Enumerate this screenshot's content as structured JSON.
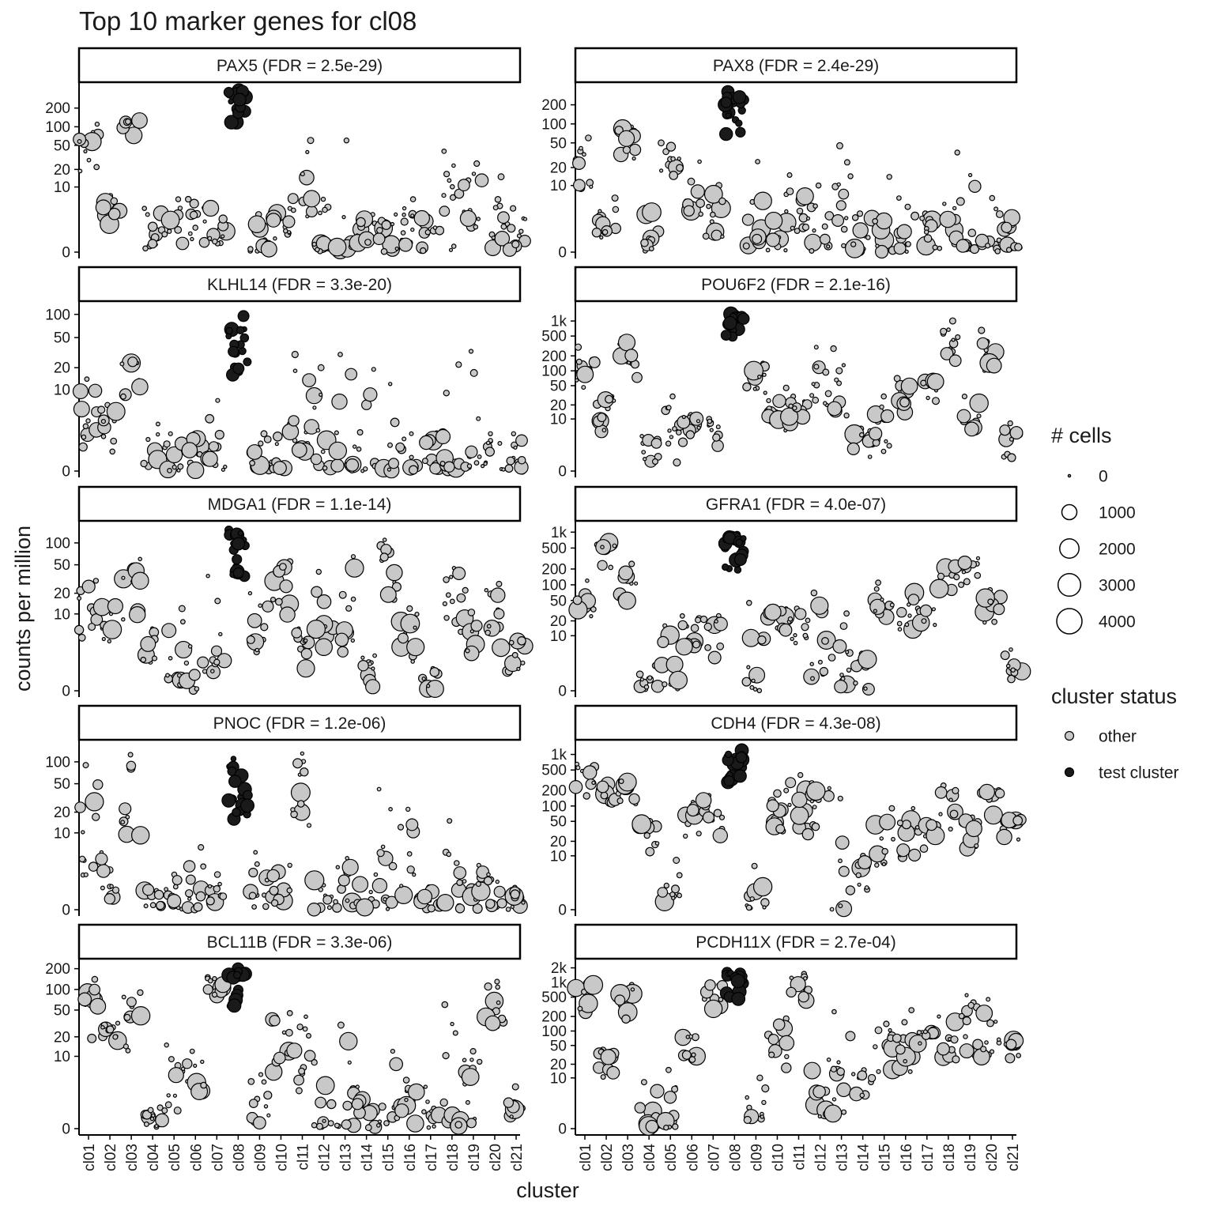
{
  "chart_data": {
    "type": "scatter",
    "title": "Top 10 marker genes for cl08",
    "xlabel": "cluster",
    "ylabel": "counts per million",
    "categories": [
      "cl01",
      "cl02",
      "cl03",
      "cl04",
      "cl05",
      "cl06",
      "cl07",
      "cl08",
      "cl09",
      "cl10",
      "cl11",
      "cl12",
      "cl13",
      "cl14",
      "cl15",
      "cl16",
      "cl17",
      "cl18",
      "cl19",
      "cl20",
      "cl21"
    ],
    "test_cluster": "cl08",
    "y_scale": "log10(1 + cpm)",
    "colors": {
      "other": "#c8c8c8",
      "test": "#1a1a1a",
      "stroke": "#000000"
    },
    "legend": {
      "size_title": "# cells",
      "size_entries": [
        {
          "label": "0",
          "value": 0
        },
        {
          "label": "1000",
          "value": 1000
        },
        {
          "label": "2000",
          "value": 2000
        },
        {
          "label": "3000",
          "value": 3000
        },
        {
          "label": "4000",
          "value": 4000
        }
      ],
      "status_title": "cluster status",
      "status_entries": [
        {
          "label": "other",
          "status": "other"
        },
        {
          "label": "test cluster",
          "status": "test"
        }
      ]
    },
    "panels": [
      {
        "gene": "PAX5",
        "label": "PAX5 (FDR = 2.5e-29)",
        "ymax": 400,
        "ticks": [
          {
            "v": 0,
            "label": "0"
          },
          {
            "v": 10,
            "label": "10"
          },
          {
            "v": 20,
            "label": "20"
          },
          {
            "v": 50,
            "label": "50"
          },
          {
            "v": 100,
            "label": "100"
          },
          {
            "v": 200,
            "label": "200"
          }
        ],
        "medians": [
          40,
          3,
          110,
          0.5,
          1.5,
          1.5,
          1.2,
          330,
          0.3,
          1.5,
          8,
          0.5,
          0.3,
          1,
          0.4,
          1.5,
          0.8,
          0.3,
          5,
          1,
          0.7
        ],
        "highs": [
          110,
          7,
          150,
          4,
          6,
          6,
          5,
          380,
          3,
          4,
          60,
          6,
          60,
          3,
          3,
          6,
          3,
          40,
          25,
          15,
          4
        ]
      },
      {
        "gene": "PAX8",
        "label": "PAX8 (FDR = 2.4e-29)",
        "ymax": 350,
        "ticks": [
          {
            "v": 0,
            "label": "0"
          },
          {
            "v": 10,
            "label": "10"
          },
          {
            "v": 20,
            "label": "20"
          },
          {
            "v": 50,
            "label": "50"
          },
          {
            "v": 100,
            "label": "100"
          },
          {
            "v": 200,
            "label": "200"
          }
        ],
        "medians": [
          20,
          2,
          60,
          0.6,
          25,
          9,
          1.5,
          180,
          1,
          0.7,
          3,
          0.5,
          0.3,
          1,
          0.4,
          0.5,
          1,
          0.8,
          1,
          0.8,
          0.6
        ],
        "highs": [
          60,
          6,
          90,
          4,
          50,
          25,
          10,
          320,
          25,
          7,
          15,
          10,
          45,
          3,
          14,
          6,
          3,
          35,
          15,
          6,
          3
        ]
      },
      {
        "gene": "KLHL14",
        "label": "KLHL14 (FDR = 3.3e-20)",
        "ymax": 120,
        "ticks": [
          {
            "v": 0,
            "label": "0"
          },
          {
            "v": 10,
            "label": "10"
          },
          {
            "v": 20,
            "label": "20"
          },
          {
            "v": 50,
            "label": "50"
          },
          {
            "v": 100,
            "label": "100"
          }
        ],
        "medians": [
          3,
          3,
          20,
          0.4,
          0.4,
          0.6,
          0.6,
          45,
          0.3,
          0.5,
          3,
          0.3,
          0.3,
          0.3,
          0.3,
          0.3,
          0.6,
          0.3,
          0.6,
          0.4,
          0.4
        ],
        "highs": [
          14,
          6,
          26,
          3,
          2,
          2,
          7,
          95,
          2,
          3,
          30,
          20,
          30,
          19,
          12,
          2,
          2,
          22,
          33,
          2,
          2
        ]
      },
      {
        "gene": "POU6F2",
        "label": "POU6F2 (FDR = 2.1e-16)",
        "ymax": 1800,
        "ticks": [
          {
            "v": 0,
            "label": "0"
          },
          {
            "v": 10,
            "label": "10"
          },
          {
            "v": 20,
            "label": "20"
          },
          {
            "v": 50,
            "label": "50"
          },
          {
            "v": 100,
            "label": "100"
          },
          {
            "v": 200,
            "label": "200"
          },
          {
            "v": 500,
            "label": "500"
          },
          {
            "v": 1000,
            "label": "1k"
          }
        ],
        "medians": [
          120,
          15,
          200,
          1,
          1.5,
          8,
          7,
          1100,
          70,
          12,
          15,
          50,
          30,
          3,
          5,
          35,
          55,
          300,
          15,
          180,
          3
        ],
        "highs": [
          300,
          30,
          450,
          4,
          30,
          12,
          10,
          1500,
          140,
          45,
          30,
          300,
          280,
          6,
          30,
          70,
          65,
          1000,
          30,
          650,
          8
        ]
      },
      {
        "gene": "MDGA1",
        "label": "MDGA1 (FDR = 1.1e-14)",
        "ymax": 160,
        "ticks": [
          {
            "v": 0,
            "label": "0"
          },
          {
            "v": 10,
            "label": "10"
          },
          {
            "v": 20,
            "label": "20"
          },
          {
            "v": 50,
            "label": "50"
          },
          {
            "v": 100,
            "label": "100"
          }
        ],
        "medians": [
          12,
          10,
          22,
          3,
          0.8,
          0.8,
          3,
          95,
          5,
          25,
          3,
          8,
          6,
          1,
          45,
          4,
          0.4,
          15,
          7,
          8,
          3
        ],
        "highs": [
          30,
          14,
          60,
          6,
          12,
          3,
          35,
          150,
          20,
          55,
          6,
          40,
          65,
          2,
          110,
          12,
          1,
          45,
          22,
          27,
          4
        ]
      },
      {
        "gene": "GFRA1",
        "label": "GFRA1 (FDR = 4.0e-07)",
        "ymax": 1200,
        "ticks": [
          {
            "v": 0,
            "label": "0"
          },
          {
            "v": 10,
            "label": "10"
          },
          {
            "v": 20,
            "label": "20"
          },
          {
            "v": 50,
            "label": "50"
          },
          {
            "v": 100,
            "label": "100"
          },
          {
            "v": 200,
            "label": "200"
          },
          {
            "v": 500,
            "label": "500"
          },
          {
            "v": 1000,
            "label": "1k"
          }
        ],
        "medians": [
          60,
          500,
          60,
          0.4,
          0.5,
          15,
          10,
          500,
          0.6,
          25,
          20,
          2,
          1,
          1,
          60,
          35,
          30,
          200,
          250,
          40,
          2
        ],
        "highs": [
          120,
          700,
          250,
          2,
          16,
          25,
          25,
          900,
          45,
          35,
          35,
          70,
          28,
          4,
          110,
          90,
          35,
          250,
          320,
          80,
          5
        ]
      },
      {
        "gene": "PNOC",
        "label": "PNOC (FDR = 1.2e-06)",
        "ymax": 160,
        "ticks": [
          {
            "v": 0,
            "label": "0"
          },
          {
            "v": 10,
            "label": "10"
          },
          {
            "v": 20,
            "label": "20"
          },
          {
            "v": 50,
            "label": "50"
          },
          {
            "v": 100,
            "label": "100"
          }
        ],
        "medians": [
          5,
          2,
          20,
          0.3,
          0.4,
          0.7,
          0.6,
          30,
          0.6,
          0.5,
          30,
          0.3,
          0.3,
          0.3,
          0.6,
          1,
          0.5,
          0.3,
          0.5,
          0.4,
          0.3
        ],
        "highs": [
          90,
          5,
          125,
          1,
          2,
          6,
          2,
          110,
          5,
          3,
          130,
          2,
          4,
          2,
          42,
          22,
          1,
          15,
          3,
          2,
          1
        ]
      },
      {
        "gene": "CDH4",
        "label": "CDH4 (FDR = 4.3e-08)",
        "ymax": 1400,
        "ticks": [
          {
            "v": 0,
            "label": "0"
          },
          {
            "v": 10,
            "label": "10"
          },
          {
            "v": 20,
            "label": "20"
          },
          {
            "v": 50,
            "label": "50"
          },
          {
            "v": 100,
            "label": "100"
          },
          {
            "v": 200,
            "label": "200"
          },
          {
            "v": 500,
            "label": "500"
          },
          {
            "v": 1000,
            "label": "1k"
          }
        ],
        "medians": [
          450,
          200,
          250,
          35,
          2,
          60,
          60,
          750,
          1,
          90,
          80,
          70,
          0.5,
          5,
          15,
          25,
          40,
          100,
          40,
          150,
          50
        ],
        "highs": [
          650,
          280,
          320,
          50,
          8,
          120,
          160,
          1200,
          6,
          200,
          400,
          280,
          140,
          10,
          90,
          90,
          45,
          250,
          60,
          200,
          55
        ]
      },
      {
        "gene": "BCL11B",
        "label": "BCL11B (FDR = 3.3e-06)",
        "ymax": 220,
        "ticks": [
          {
            "v": 0,
            "label": "0"
          },
          {
            "v": 10,
            "label": "10"
          },
          {
            "v": 20,
            "label": "20"
          },
          {
            "v": 50,
            "label": "50"
          },
          {
            "v": 100,
            "label": "100"
          },
          {
            "v": 200,
            "label": "200"
          }
        ],
        "medians": [
          50,
          25,
          35,
          0.3,
          2,
          6,
          140,
          140,
          0.8,
          15,
          8,
          0.3,
          0.3,
          0.5,
          0.5,
          1,
          0.5,
          0.3,
          1,
          55,
          1
        ],
        "highs": [
          140,
          32,
          90,
          1,
          15,
          12,
          150,
          200,
          5,
          45,
          40,
          8,
          30,
          3,
          12,
          4,
          3,
          60,
          12,
          130,
          3
        ]
      },
      {
        "gene": "PCDH11X",
        "label": "PCDH11X (FDR = 2.7e-04)",
        "ymax": 2200,
        "ticks": [
          {
            "v": 0,
            "label": "0"
          },
          {
            "v": 10,
            "label": "10"
          },
          {
            "v": 20,
            "label": "20"
          },
          {
            "v": 50,
            "label": "50"
          },
          {
            "v": 100,
            "label": "100"
          },
          {
            "v": 200,
            "label": "200"
          },
          {
            "v": 500,
            "label": "500"
          },
          {
            "v": 1000,
            "label": "1k"
          },
          {
            "v": 2000,
            "label": "2k"
          }
        ],
        "medians": [
          600,
          30,
          350,
          0.6,
          0.5,
          70,
          800,
          1300,
          1,
          40,
          1000,
          1,
          3,
          10,
          40,
          40,
          90,
          60,
          90,
          70,
          50
        ],
        "highs": [
          1000,
          40,
          900,
          8,
          15,
          90,
          900,
          1600,
          10,
          180,
          1500,
          25,
          250,
          15,
          140,
          270,
          100,
          200,
          550,
          450,
          80
        ]
      }
    ]
  }
}
